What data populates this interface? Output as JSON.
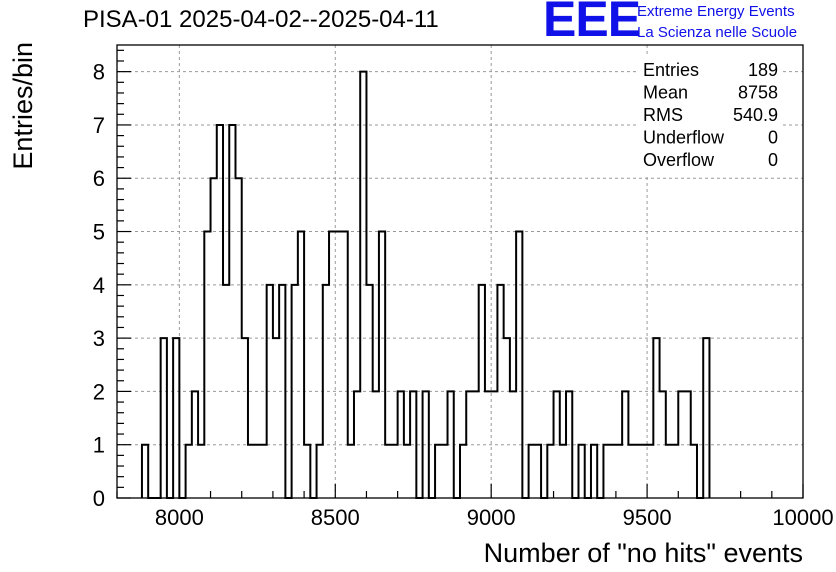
{
  "header": {
    "title": "PISA-01 2025-04-02--2025-04-11",
    "logo_mark": "EEE",
    "logo_line1": "Extreme Energy Events",
    "logo_line2": "La Scienza nelle Scuole"
  },
  "stats": {
    "rows": [
      {
        "label": "Entries",
        "value": "189"
      },
      {
        "label": "Mean",
        "value": "8758"
      },
      {
        "label": "RMS",
        "value": "540.9"
      },
      {
        "label": "Underflow",
        "value": "0"
      },
      {
        "label": "Overflow",
        "value": "0"
      }
    ]
  },
  "colors": {
    "line": "#000000",
    "grid": "#9a9a9a",
    "logo": "#1010e8"
  },
  "chart_data": {
    "type": "bar",
    "histogram": true,
    "xlabel": "Number of \"no hits\" events",
    "ylabel": "Entries/bin",
    "xlim": [
      7800,
      10000
    ],
    "ylim": [
      0,
      8.5
    ],
    "x_ticks": [
      8000,
      8500,
      9000,
      9500,
      10000
    ],
    "y_ticks": [
      0,
      1,
      2,
      3,
      4,
      5,
      6,
      7,
      8
    ],
    "grid": true,
    "bin_edges_start": 7880,
    "bin_width": 20,
    "values": [
      1,
      0,
      0,
      3,
      0,
      3,
      0,
      1,
      2,
      1,
      5,
      6,
      7,
      4,
      7,
      6,
      3,
      1,
      1,
      1,
      4,
      3,
      4,
      0,
      4,
      5,
      1,
      0,
      1,
      4,
      5,
      5,
      5,
      1,
      2,
      8,
      4,
      2,
      5,
      1,
      1,
      2,
      1,
      2,
      0,
      2,
      0,
      1,
      1,
      2,
      0,
      1,
      2,
      2,
      4,
      2,
      2,
      4,
      3,
      2,
      5,
      0,
      1,
      1,
      0,
      1,
      2,
      1,
      2,
      0,
      1,
      0,
      1,
      0,
      1,
      1,
      1,
      2,
      1,
      1,
      1,
      1,
      3,
      2,
      1,
      1,
      2,
      2,
      1,
      0,
      3
    ]
  }
}
